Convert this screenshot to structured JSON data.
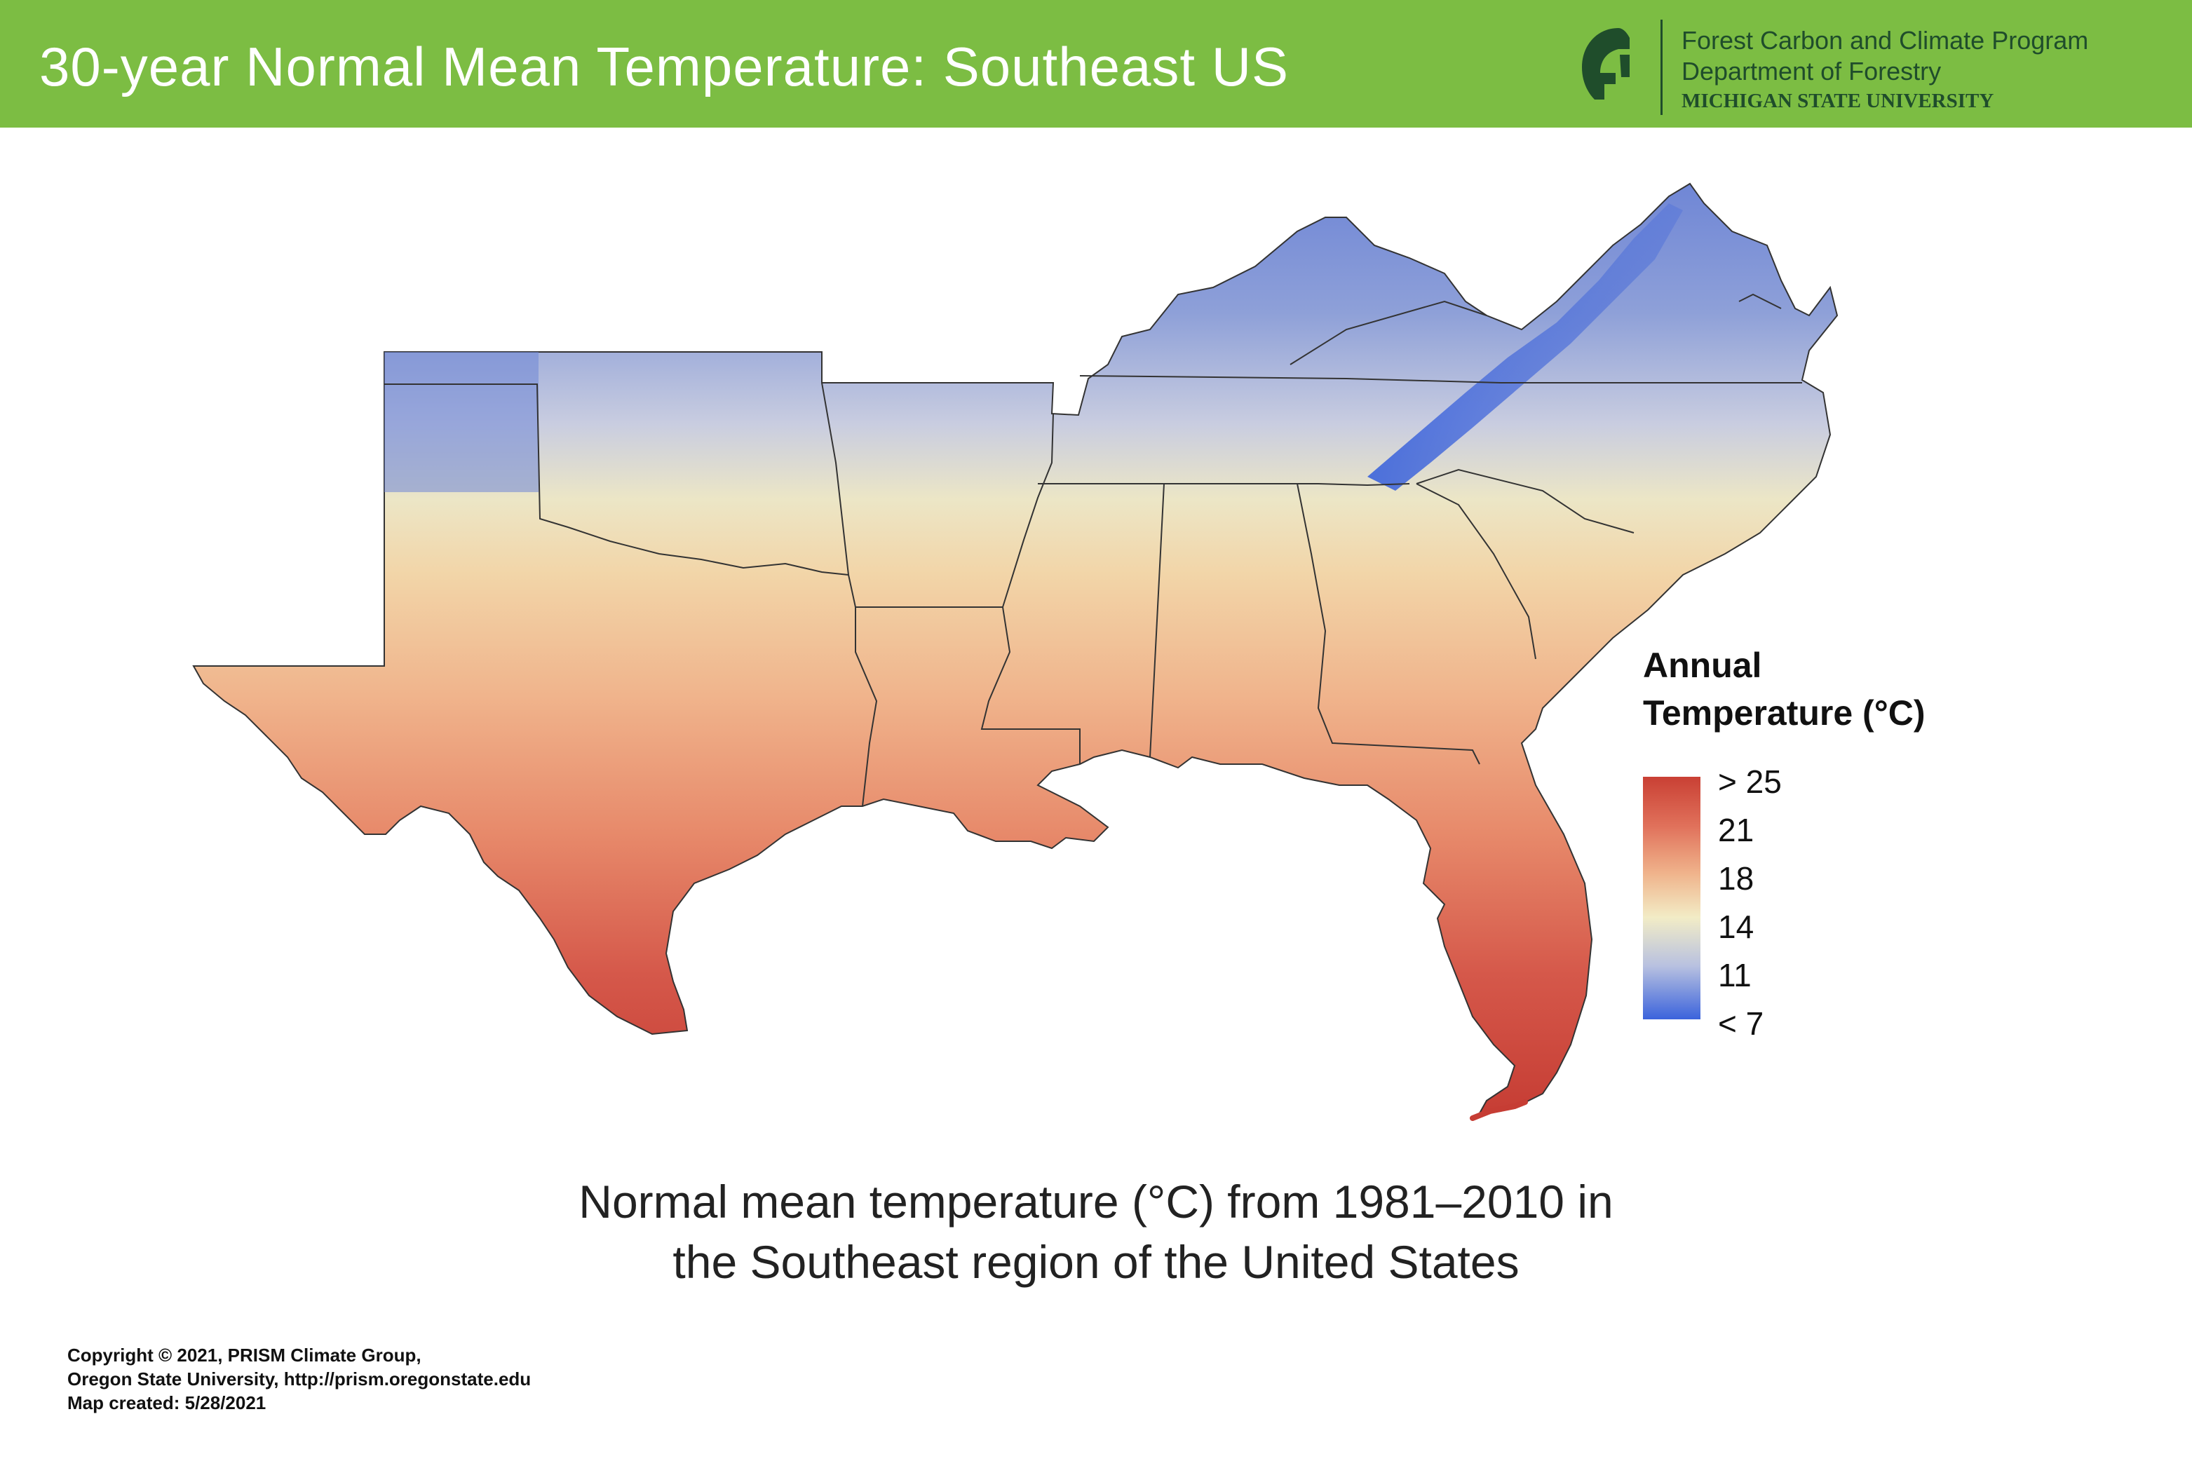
{
  "header": {
    "title": "30-year Normal Mean Temperature: Southeast US",
    "background_color": "#7cbd43",
    "logo_icon": "spartan-helmet-icon",
    "org_line1": "Forest Carbon and Climate Program",
    "org_line2": "Department of Forestry",
    "org_line3": "MICHIGAN STATE UNIVERSITY"
  },
  "map": {
    "region": "Southeast US",
    "gradient_note": "colder in Appalachians and north, warmest in south Florida and south Texas"
  },
  "legend": {
    "title_line1": "Annual",
    "title_line2": "Temperature (°C)",
    "labels": [
      "> 25",
      "21",
      "18",
      "14",
      "11",
      "< 7"
    ],
    "colors": [
      "#c94034",
      "#e0705a",
      "#f0b48c",
      "#f2ecc6",
      "#b8c1e0",
      "#3b63dc"
    ]
  },
  "caption": {
    "line1": "Normal mean temperature (°C) from 1981–2010 in",
    "line2": "the Southeast region of the United States"
  },
  "credits": {
    "line1": "Copyright © 2021, PRISM Climate Group,",
    "line2": "Oregon State University, http://prism.oregonstate.edu",
    "line3": "Map created: 5/28/2021"
  }
}
